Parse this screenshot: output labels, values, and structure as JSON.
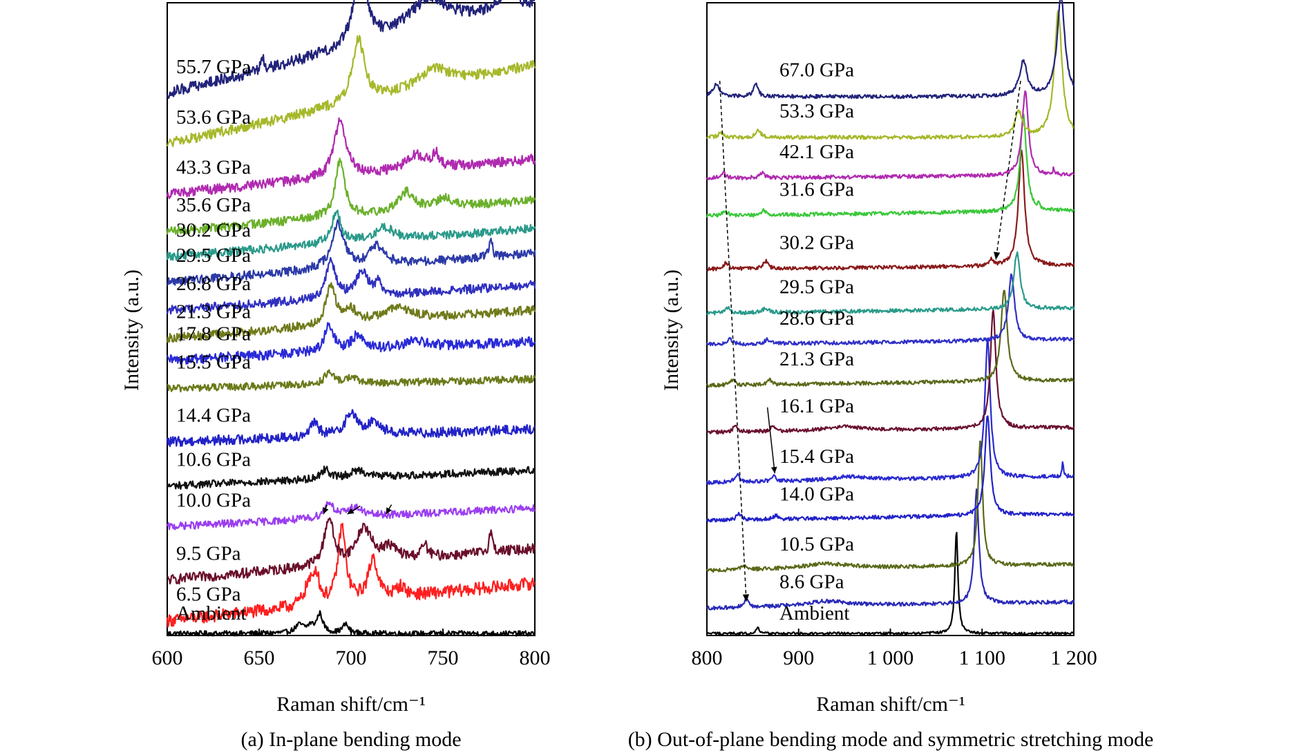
{
  "chart_data": [
    {
      "type": "line",
      "panel_caption": "(a) In-plane bending mode",
      "xlabel": "Raman shift/cm⁻¹",
      "ylabel": "Intensity (a.u.)",
      "xlim": [
        600,
        800
      ],
      "xticks": [
        600,
        650,
        700,
        750,
        800
      ],
      "xtick_labels": [
        "600",
        "650",
        "700",
        "750",
        "800"
      ],
      "offset_stacked": true,
      "series": [
        {
          "name": "Ambient",
          "color": "#000000",
          "baseline": 0.0,
          "slope": 0.0,
          "noise": 0.004,
          "peaks": [
            {
              "x": 672,
              "a": 0.013,
              "w": 3
            },
            {
              "x": 678,
              "a": 0.01,
              "w": 2
            },
            {
              "x": 683,
              "a": 0.03,
              "w": 2
            },
            {
              "x": 697,
              "a": 0.014,
              "w": 2
            }
          ]
        },
        {
          "name": "6.5 GPa",
          "color": "#ff1f1f",
          "baseline": 0.02,
          "slope": 0.06,
          "noise": 0.01,
          "peaks": [
            {
              "x": 677,
              "a": 0.03,
              "w": 3
            },
            {
              "x": 681,
              "a": 0.045,
              "w": 2
            },
            {
              "x": 695,
              "a": 0.12,
              "w": 2.5
            },
            {
              "x": 712,
              "a": 0.065,
              "w": 3
            },
            {
              "x": 727,
              "a": 0.015,
              "w": 3
            }
          ]
        },
        {
          "name": "9.5 GPa",
          "color": "#6a0f2a",
          "baseline": 0.085,
          "slope": 0.05,
          "noise": 0.008,
          "peaks": [
            {
              "x": 688,
              "a": 0.075,
              "w": 3
            },
            {
              "x": 707,
              "a": 0.055,
              "w": 5
            },
            {
              "x": 721,
              "a": 0.02,
              "w": 5
            },
            {
              "x": 740,
              "a": 0.02,
              "w": 2
            },
            {
              "x": 776,
              "a": 0.035,
              "w": 1
            }
          ]
        },
        {
          "name": "10.0 GPa",
          "color": "#9b3ef0",
          "baseline": 0.17,
          "slope": 0.03,
          "noise": 0.006,
          "peaks": [
            {
              "x": 688,
              "a": 0.025,
              "w": 3
            },
            {
              "x": 702,
              "a": 0.015,
              "w": 5
            }
          ]
        },
        {
          "name": "10.6 GPa",
          "color": "#111111",
          "baseline": 0.235,
          "slope": 0.025,
          "noise": 0.006,
          "peaks": [
            {
              "x": 686,
              "a": 0.015,
              "w": 3
            },
            {
              "x": 704,
              "a": 0.012,
              "w": 5
            }
          ]
        },
        {
          "name": "14.4 GPa",
          "color": "#2222c8",
          "baseline": 0.305,
          "slope": 0.02,
          "noise": 0.008,
          "peaks": [
            {
              "x": 680,
              "a": 0.02,
              "w": 3
            },
            {
              "x": 700,
              "a": 0.035,
              "w": 4
            },
            {
              "x": 713,
              "a": 0.02,
              "w": 4
            }
          ]
        },
        {
          "name": "15.5 GPa",
          "color": "#6a7a1a",
          "baseline": 0.39,
          "slope": 0.015,
          "noise": 0.006,
          "peaks": [
            {
              "x": 688,
              "a": 0.018,
              "w": 3
            },
            {
              "x": 700,
              "a": 0.01,
              "w": 4
            }
          ]
        },
        {
          "name": "17.8 GPa",
          "color": "#2a2ad8",
          "baseline": 0.435,
          "slope": 0.03,
          "noise": 0.008,
          "peaks": [
            {
              "x": 688,
              "a": 0.04,
              "w": 3
            },
            {
              "x": 704,
              "a": 0.025,
              "w": 4
            },
            {
              "x": 735,
              "a": 0.01,
              "w": 8
            }
          ]
        },
        {
          "name": "21.3 GPa",
          "color": "#707a1a",
          "baseline": 0.47,
          "slope": 0.045,
          "noise": 0.007,
          "peaks": [
            {
              "x": 689,
              "a": 0.065,
              "w": 3
            },
            {
              "x": 700,
              "a": 0.02,
              "w": 4
            },
            {
              "x": 725,
              "a": 0.02,
              "w": 10
            }
          ]
        },
        {
          "name": "26.8 GPa",
          "color": "#3030c0",
          "baseline": 0.515,
          "slope": 0.04,
          "noise": 0.007,
          "peaks": [
            {
              "x": 689,
              "a": 0.06,
              "w": 3
            },
            {
              "x": 706,
              "a": 0.04,
              "w": 4
            },
            {
              "x": 715,
              "a": 0.02,
              "w": 2
            }
          ]
        },
        {
          "name": "29.5 GPa",
          "color": "#2c3aa8",
          "baseline": 0.56,
          "slope": 0.045,
          "noise": 0.007,
          "peaks": [
            {
              "x": 693,
              "a": 0.07,
              "w": 4
            },
            {
              "x": 714,
              "a": 0.03,
              "w": 5
            },
            {
              "x": 776,
              "a": 0.03,
              "w": 1
            }
          ]
        },
        {
          "name": "30.2 GPa",
          "color": "#2a9a8a",
          "baseline": 0.6,
          "slope": 0.045,
          "noise": 0.007,
          "peaks": [
            {
              "x": 692,
              "a": 0.05,
              "w": 3
            },
            {
              "x": 718,
              "a": 0.02,
              "w": 6
            }
          ]
        },
        {
          "name": "35.6 GPa",
          "color": "#6ab02a",
          "baseline": 0.64,
          "slope": 0.05,
          "noise": 0.007,
          "peaks": [
            {
              "x": 694,
              "a": 0.09,
              "w": 3
            },
            {
              "x": 730,
              "a": 0.03,
              "w": 5
            },
            {
              "x": 751,
              "a": 0.015,
              "w": 5
            }
          ]
        },
        {
          "name": "43.3 GPa",
          "color": "#b02ab0",
          "baseline": 0.7,
          "slope": 0.055,
          "noise": 0.008,
          "peaks": [
            {
              "x": 694,
              "a": 0.09,
              "w": 4
            },
            {
              "x": 735,
              "a": 0.025,
              "w": 7
            },
            {
              "x": 746,
              "a": 0.02,
              "w": 2
            }
          ]
        },
        {
          "name": "53.6 GPa",
          "color": "#a6b82a",
          "baseline": 0.78,
          "slope": 0.125,
          "noise": 0.008,
          "peaks": [
            {
              "x": 704,
              "a": 0.1,
              "w": 4
            },
            {
              "x": 745,
              "a": 0.03,
              "w": 10
            }
          ]
        },
        {
          "name": "55.7 GPa",
          "color": "#22237a",
          "baseline": 0.86,
          "slope": 0.14,
          "noise": 0.009,
          "peaks": [
            {
              "x": 652,
              "a": 0.02,
              "w": 1
            },
            {
              "x": 705,
              "a": 0.13,
              "w": 4
            },
            {
              "x": 742,
              "a": 0.05,
              "w": 14
            },
            {
              "x": 785,
              "a": 0.03,
              "w": 5
            }
          ]
        }
      ],
      "annotation_arrows": [
        {
          "x1": 687,
          "y1": 0.205,
          "x2": 685,
          "y2": 0.19
        },
        {
          "x1": 705,
          "y1": 0.203,
          "x2": 698,
          "y2": 0.19
        },
        {
          "x1": 722,
          "y1": 0.205,
          "x2": 719,
          "y2": 0.19
        }
      ]
    },
    {
      "type": "line",
      "panel_caption": "(b) Out-of-plane bending mode and symmetric stretching mode",
      "xlabel": "Raman shift/cm⁻¹",
      "ylabel": "Intensity (a.u.)",
      "xlim": [
        800,
        1200
      ],
      "xticks": [
        800,
        900,
        1000,
        1100,
        1200
      ],
      "xtick_labels": [
        "800",
        "900",
        "1 000",
        "1 100",
        "1 200"
      ],
      "offset_stacked": true,
      "series": [
        {
          "name": "Ambient",
          "color": "#000000",
          "baseline": 0.0,
          "slope": 0.0,
          "noise": 0.002,
          "peaks": [
            {
              "x": 855,
              "a": 0.01,
              "w": 2
            },
            {
              "x": 1072,
              "a": 0.165,
              "w": 2
            }
          ]
        },
        {
          "name": "8.6 GPa",
          "color": "#2a2ab8",
          "baseline": 0.04,
          "slope": 0.01,
          "noise": 0.003,
          "peaks": [
            {
              "x": 843,
              "a": 0.012,
              "w": 3
            },
            {
              "x": 930,
              "a": 0.008,
              "w": 30
            },
            {
              "x": 1094,
              "a": 0.18,
              "w": 3
            }
          ]
        },
        {
          "name": "10.5 GPa",
          "color": "#5a6a1a",
          "baseline": 0.1,
          "slope": 0.01,
          "noise": 0.003,
          "peaks": [
            {
              "x": 840,
              "a": 0.008,
              "w": 3
            },
            {
              "x": 930,
              "a": 0.008,
              "w": 30
            },
            {
              "x": 1098,
              "a": 0.2,
              "w": 3
            }
          ]
        },
        {
          "name": "14.0 GPa",
          "color": "#2222c8",
          "baseline": 0.18,
          "slope": 0.01,
          "noise": 0.003,
          "peaks": [
            {
              "x": 835,
              "a": 0.01,
              "w": 3
            },
            {
              "x": 875,
              "a": 0.006,
              "w": 3
            },
            {
              "x": 1106,
              "a": 0.16,
              "w": 3.5
            }
          ]
        },
        {
          "name": "15.4 GPa",
          "color": "#2a2ad0",
          "baseline": 0.24,
          "slope": 0.01,
          "noise": 0.003,
          "peaks": [
            {
              "x": 833,
              "a": 0.012,
              "w": 3
            },
            {
              "x": 873,
              "a": 0.008,
              "w": 3
            },
            {
              "x": 955,
              "a": 0.006,
              "w": 25
            },
            {
              "x": 1106,
              "a": 0.22,
              "w": 3.5
            },
            {
              "x": 1188,
              "a": 0.025,
              "w": 0.8
            }
          ]
        },
        {
          "name": "16.1 GPa",
          "color": "#6a1030",
          "baseline": 0.32,
          "slope": 0.008,
          "noise": 0.003,
          "peaks": [
            {
              "x": 831,
              "a": 0.01,
              "w": 3
            },
            {
              "x": 872,
              "a": 0.008,
              "w": 3
            },
            {
              "x": 950,
              "a": 0.006,
              "w": 25
            },
            {
              "x": 1112,
              "a": 0.19,
              "w": 3.5
            }
          ]
        },
        {
          "name": "21.3 GPa",
          "color": "#5a6a1a",
          "baseline": 0.395,
          "slope": 0.008,
          "noise": 0.003,
          "peaks": [
            {
              "x": 828,
              "a": 0.008,
              "w": 3
            },
            {
              "x": 868,
              "a": 0.008,
              "w": 3
            },
            {
              "x": 1124,
              "a": 0.145,
              "w": 4
            }
          ]
        },
        {
          "name": "28.6 GPa",
          "color": "#3030c8",
          "baseline": 0.46,
          "slope": 0.008,
          "noise": 0.003,
          "peaks": [
            {
              "x": 825,
              "a": 0.008,
              "w": 3
            },
            {
              "x": 866,
              "a": 0.008,
              "w": 3
            },
            {
              "x": 1132,
              "a": 0.105,
              "w": 4
            }
          ]
        },
        {
          "name": "29.5 GPa",
          "color": "#2a9a8a",
          "baseline": 0.51,
          "slope": 0.008,
          "noise": 0.003,
          "peaks": [
            {
              "x": 823,
              "a": 0.008,
              "w": 3
            },
            {
              "x": 864,
              "a": 0.008,
              "w": 3
            },
            {
              "x": 1138,
              "a": 0.09,
              "w": 4
            }
          ]
        },
        {
          "name": "30.2 GPa",
          "color": "#8a1a1a",
          "baseline": 0.58,
          "slope": 0.006,
          "noise": 0.003,
          "peaks": [
            {
              "x": 821,
              "a": 0.01,
              "w": 3
            },
            {
              "x": 864,
              "a": 0.012,
              "w": 3
            },
            {
              "x": 1110,
              "a": 0.01,
              "w": 2
            },
            {
              "x": 1143,
              "a": 0.185,
              "w": 4
            }
          ]
        },
        {
          "name": "31.6 GPa",
          "color": "#3ac83a",
          "baseline": 0.665,
          "slope": 0.008,
          "noise": 0.003,
          "peaks": [
            {
              "x": 820,
              "a": 0.008,
              "w": 3
            },
            {
              "x": 862,
              "a": 0.008,
              "w": 3
            },
            {
              "x": 1145,
              "a": 0.155,
              "w": 4
            },
            {
              "x": 1162,
              "a": 0.01,
              "w": 1
            }
          ]
        },
        {
          "name": "42.1 GPa",
          "color": "#b02ab0",
          "baseline": 0.725,
          "slope": 0.005,
          "noise": 0.003,
          "peaks": [
            {
              "x": 818,
              "a": 0.008,
              "w": 3
            },
            {
              "x": 860,
              "a": 0.008,
              "w": 3
            },
            {
              "x": 1147,
              "a": 0.135,
              "w": 4
            },
            {
              "x": 1178,
              "a": 0.01,
              "w": 1
            }
          ]
        },
        {
          "name": "53.3 GPa",
          "color": "#a6b82a",
          "baseline": 0.79,
          "slope": 0.0,
          "noise": 0.003,
          "peaks": [
            {
              "x": 815,
              "a": 0.008,
              "w": 3
            },
            {
              "x": 856,
              "a": 0.012,
              "w": 3
            },
            {
              "x": 1140,
              "a": 0.04,
              "w": 5
            },
            {
              "x": 1183,
              "a": 0.2,
              "w": 5
            }
          ]
        },
        {
          "name": "67.0 GPa",
          "color": "#22237a",
          "baseline": 0.855,
          "slope": 0.0,
          "noise": 0.003,
          "peaks": [
            {
              "x": 810,
              "a": 0.02,
              "w": 4
            },
            {
              "x": 853,
              "a": 0.02,
              "w": 3
            },
            {
              "x": 1145,
              "a": 0.055,
              "w": 5
            },
            {
              "x": 1186,
              "a": 0.16,
              "w": 5
            }
          ]
        }
      ],
      "dashed_guides": [
        {
          "x1": 814,
          "y1": 0.88,
          "x2": 843,
          "y2": 0.05
        },
        {
          "x1": 1142,
          "y1": 0.88,
          "x2": 1115,
          "y2": 0.595
        }
      ],
      "annotation_arrows": [
        {
          "x1": 866,
          "y1": 0.36,
          "x2": 874,
          "y2": 0.255
        }
      ]
    }
  ]
}
